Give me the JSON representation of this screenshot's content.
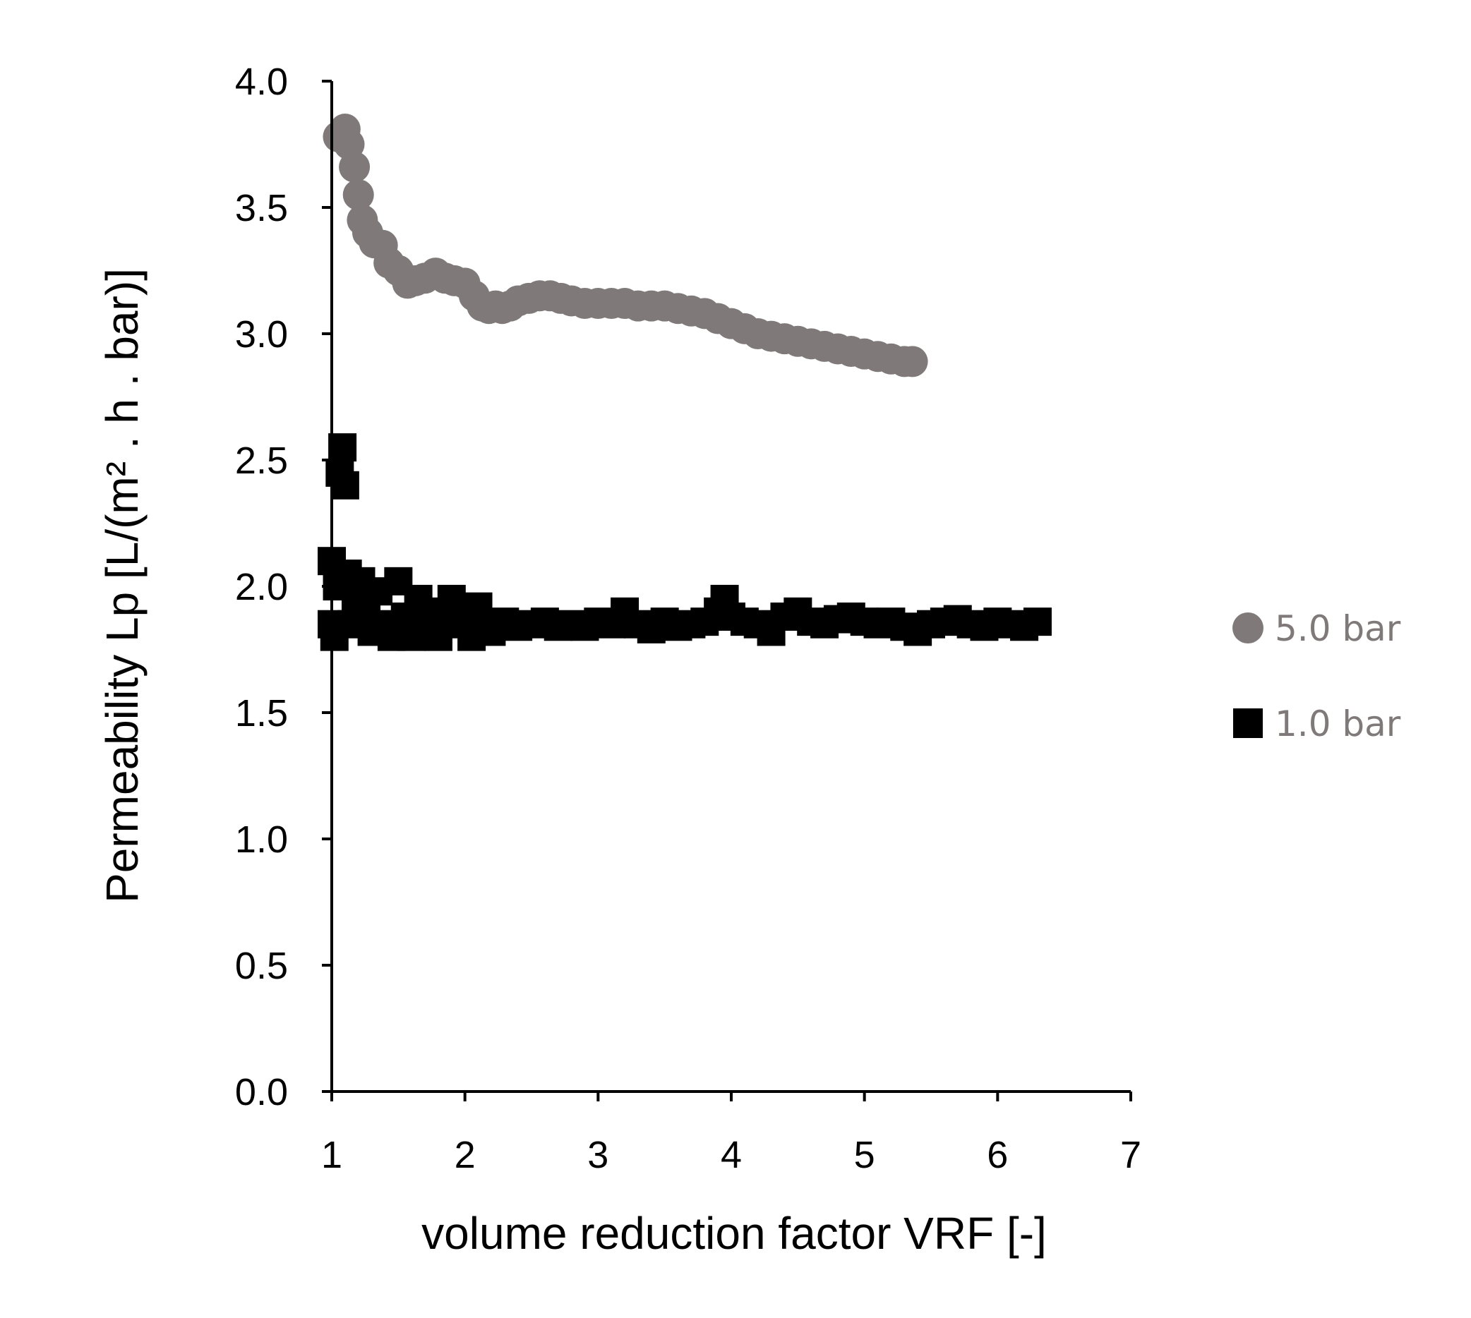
{
  "chart_data": {
    "type": "scatter",
    "title": "",
    "xlabel": "volume reduction factor VRF [-]",
    "ylabel": "Permeability Lp [L/(m² . h . bar)]",
    "xlim": [
      1,
      7
    ],
    "ylim": [
      0.0,
      4.0
    ],
    "x_ticks": [
      "1",
      "2",
      "3",
      "4",
      "5",
      "6",
      "7"
    ],
    "y_ticks": [
      "0.0",
      "0.5",
      "1.0",
      "1.5",
      "2.0",
      "2.5",
      "3.0",
      "3.5",
      "4.0"
    ],
    "grid": false,
    "legend_position": "right",
    "series": [
      {
        "name": "5.0 bar",
        "marker": "circle",
        "color": "#7f7a79",
        "x": [
          1.05,
          1.1,
          1.13,
          1.17,
          1.2,
          1.23,
          1.27,
          1.32,
          1.38,
          1.43,
          1.5,
          1.57,
          1.63,
          1.7,
          1.78,
          1.85,
          1.92,
          2.0,
          2.07,
          2.13,
          2.18,
          2.23,
          2.28,
          2.34,
          2.4,
          2.48,
          2.56,
          2.64,
          2.72,
          2.8,
          2.9,
          3.0,
          3.1,
          3.2,
          3.3,
          3.4,
          3.5,
          3.6,
          3.7,
          3.8,
          3.9,
          4.0,
          4.1,
          4.2,
          4.3,
          4.4,
          4.5,
          4.6,
          4.7,
          4.8,
          4.9,
          5.0,
          5.1,
          5.2,
          5.3,
          5.36
        ],
        "y": [
          3.78,
          3.81,
          3.75,
          3.66,
          3.55,
          3.45,
          3.4,
          3.36,
          3.35,
          3.28,
          3.25,
          3.2,
          3.21,
          3.22,
          3.24,
          3.22,
          3.21,
          3.2,
          3.15,
          3.11,
          3.1,
          3.11,
          3.1,
          3.11,
          3.13,
          3.14,
          3.15,
          3.15,
          3.14,
          3.13,
          3.12,
          3.12,
          3.12,
          3.12,
          3.11,
          3.11,
          3.11,
          3.1,
          3.09,
          3.08,
          3.06,
          3.04,
          3.02,
          3.0,
          2.99,
          2.98,
          2.97,
          2.96,
          2.95,
          2.94,
          2.93,
          2.92,
          2.91,
          2.9,
          2.89,
          2.89
        ]
      },
      {
        "name": "1.0 bar",
        "marker": "square",
        "color": "#000000",
        "x": [
          1.0,
          1.0,
          1.02,
          1.04,
          1.06,
          1.08,
          1.1,
          1.12,
          1.15,
          1.18,
          1.22,
          1.26,
          1.3,
          1.35,
          1.4,
          1.45,
          1.5,
          1.55,
          1.6,
          1.65,
          1.7,
          1.75,
          1.8,
          1.85,
          1.9,
          1.95,
          2.0,
          2.05,
          2.1,
          2.15,
          2.2,
          2.3,
          2.4,
          2.5,
          2.6,
          2.7,
          2.8,
          2.9,
          3.0,
          3.1,
          3.2,
          3.3,
          3.4,
          3.5,
          3.6,
          3.7,
          3.8,
          3.9,
          3.95,
          4.0,
          4.1,
          4.2,
          4.3,
          4.4,
          4.5,
          4.6,
          4.7,
          4.8,
          4.9,
          5.0,
          5.1,
          5.2,
          5.3,
          5.4,
          5.5,
          5.6,
          5.7,
          5.8,
          5.9,
          6.0,
          6.1,
          6.2,
          6.3
        ],
        "y": [
          1.85,
          2.1,
          1.8,
          2.0,
          2.45,
          2.55,
          2.4,
          2.05,
          1.85,
          1.95,
          2.02,
          1.9,
          1.82,
          1.98,
          1.85,
          1.8,
          2.02,
          1.88,
          1.8,
          1.95,
          1.85,
          1.9,
          1.8,
          1.88,
          1.95,
          1.85,
          1.9,
          1.8,
          1.92,
          1.85,
          1.82,
          1.86,
          1.84,
          1.85,
          1.86,
          1.84,
          1.85,
          1.84,
          1.86,
          1.85,
          1.9,
          1.85,
          1.83,
          1.86,
          1.84,
          1.85,
          1.86,
          1.9,
          1.95,
          1.88,
          1.86,
          1.85,
          1.82,
          1.88,
          1.9,
          1.86,
          1.85,
          1.87,
          1.88,
          1.86,
          1.85,
          1.86,
          1.84,
          1.82,
          1.85,
          1.86,
          1.87,
          1.85,
          1.84,
          1.86,
          1.85,
          1.84,
          1.86
        ]
      }
    ]
  }
}
